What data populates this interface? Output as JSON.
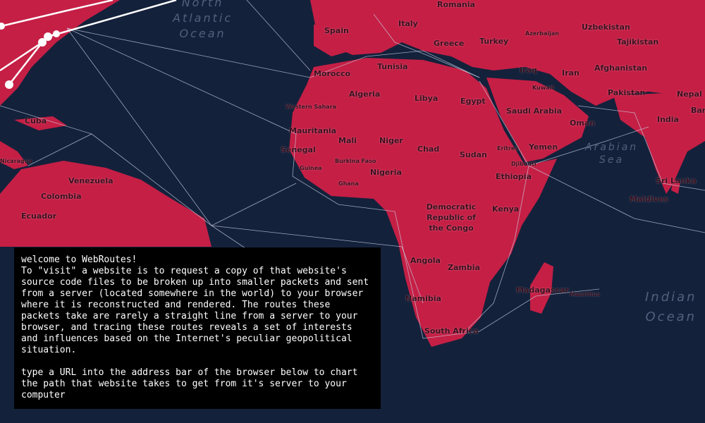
{
  "map": {
    "land_color": "#c51f45",
    "ocean_color": "#14213b",
    "oceans": [
      {
        "name": "North Atlantic Ocean",
        "lines": [
          "North",
          "Atlantic",
          "Ocean"
        ]
      },
      {
        "name": "Arabian Sea",
        "lines": [
          "Arabian",
          "Sea"
        ]
      },
      {
        "name": "Indian Ocean",
        "lines": [
          "Indian",
          "Ocean"
        ]
      }
    ],
    "countries": [
      "Spain",
      "Italy",
      "Romania",
      "Greece",
      "Turkey",
      "Azerbaijan",
      "Uzbekistan",
      "Tajikistan",
      "Morocco",
      "Tunisia",
      "Iraq",
      "Iran",
      "Afghanistan",
      "Kuwait",
      "Pakistan",
      "Nepal",
      "Algeria",
      "Libya",
      "Egypt",
      "Saudi Arabia",
      "Western Sahara",
      "Oman",
      "India",
      "Ban",
      "Cuba",
      "Mauritania",
      "Mali",
      "Niger",
      "Chad",
      "Sudan",
      "Eritrea",
      "Yemen",
      "Senegal",
      "Burkina Faso",
      "Guinea",
      "Djibouti",
      "Nicaragua",
      "Nigeria",
      "Ethiopia",
      "Venezuela",
      "Ghana",
      "Sri Lanka",
      "Colombia",
      "Maldives",
      "Ecuador",
      "Democratic Republic of the Congo",
      "Kenya",
      "Angola",
      "Zambia",
      "Madagascar",
      "Mauritius",
      "Namibia",
      "South Africa"
    ]
  },
  "intro": {
    "title": "welcome to WebRoutes!",
    "body": "To \"visit\" a website is to request a copy of that website's source code files to be broken up into smaller packets and sent from a server (located somewhere in the world) to your browser where it is reconstructed and rendered. The routes these packets take are rarely a straight line from a server to your browser, and tracing these routes reveals a set of interests and influences based on the Internet's peculiar geopolitical situation.",
    "instruction": "type a URL into the address bar of the browser below to chart the path that website takes to get from it's server to your computer"
  }
}
